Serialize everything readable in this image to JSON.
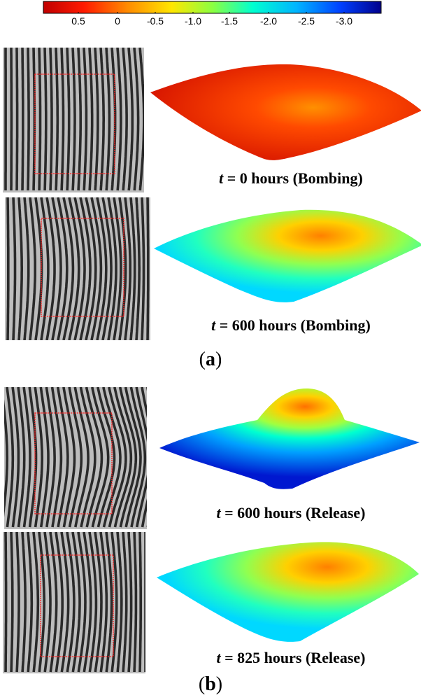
{
  "colorbar": {
    "ticks": [
      "0.5",
      "0",
      "-0.5",
      "-1.0",
      "-1.5",
      "-2.0",
      "-2.5",
      "-3.0"
    ]
  },
  "panels": [
    {
      "label": "a",
      "rows": [
        {
          "t": "t",
          "caption_text": " = 0 hours (Bombing)",
          "surface_colors": [
            "#e11f00",
            "#ff5a00",
            "#ff9a00"
          ]
        },
        {
          "t": "t",
          "caption_text": " = 600 hours (Bombing)",
          "surface_colors": [
            "#00e0ff",
            "#a8ff40",
            "#ff9000"
          ]
        }
      ]
    },
    {
      "label": "b",
      "rows": [
        {
          "t": "t",
          "caption_text": " = 600 hours (Release)",
          "surface_colors": [
            "#0020e0",
            "#00c8ff",
            "#ff7000"
          ]
        },
        {
          "t": "t",
          "caption_text": " = 825 hours (Release)",
          "surface_colors": [
            "#00e0ff",
            "#a8ff40",
            "#ff9000"
          ]
        }
      ]
    }
  ],
  "colors": {
    "frame_line": "#ff2020",
    "fringe_dark": "#111111",
    "fringe_light": "#cfcfcf"
  }
}
